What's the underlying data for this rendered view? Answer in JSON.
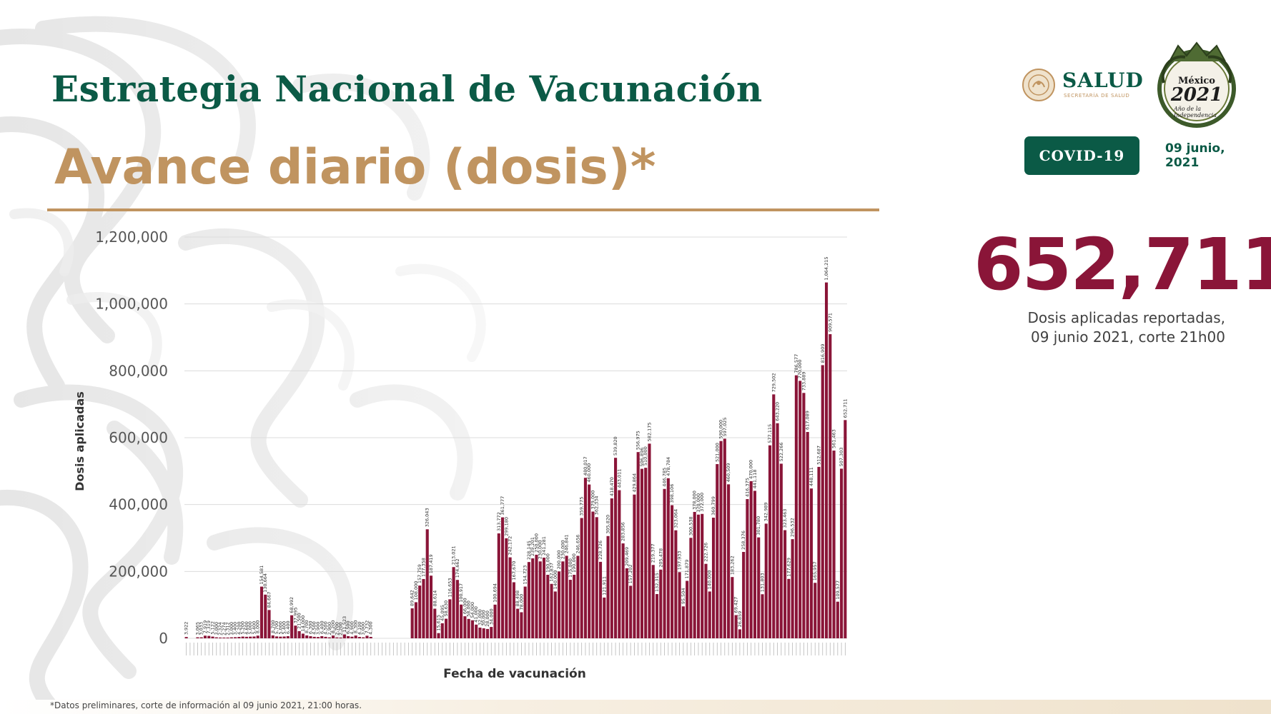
{
  "header": {
    "title": "Estrategia Nacional de Vacunación",
    "subtitle": "Avance diario (dosis)*"
  },
  "logos": {
    "salud_name": "SALUD",
    "salud_subname": "SECRETARÍA DE SALUD",
    "mexico_line1": "México",
    "mexico_line2": "2021",
    "mexico_line3": "Año de la Independencia"
  },
  "badge": {
    "label": "COVID-19"
  },
  "date": {
    "line1": "09 junio,",
    "line2": "2021"
  },
  "summary": {
    "value": "652,711",
    "caption_line1": "Dosis aplicadas reportadas,",
    "caption_line2": "09 junio 2021, corte 21h00"
  },
  "footnote": "*Datos preliminares, corte de información al 09 junio  2021, 21:00 horas.",
  "colors": {
    "bar": "#8a1538",
    "title_green": "#0b5a46",
    "subtitle_gold": "#c09460",
    "number": "#8a1538"
  },
  "chart_data": {
    "type": "bar",
    "title": "",
    "xlabel": "Fecha de vacunación",
    "ylabel": "Dosis aplicadas",
    "ylim": [
      0,
      1200000
    ],
    "yticks": [
      "0",
      "200,000",
      "400,000",
      "600,000",
      "800,000",
      "1,000,000",
      "1,200,000"
    ],
    "grid": true,
    "legend": "none",
    "values": [
      3922,
      0,
      0,
      3065,
      3033,
      7919,
      7319,
      5122,
      3000,
      2324,
      2274,
      2312,
      3000,
      3400,
      4200,
      5200,
      4600,
      5000,
      5400,
      8000,
      154581,
      130664,
      84667,
      8700,
      5700,
      5000,
      5400,
      6400,
      68992,
      37995,
      21500,
      14000,
      8700,
      6300,
      4500,
      3900,
      6400,
      4500,
      2900,
      8200,
      2700,
      2200,
      11523,
      6500,
      4900,
      8300,
      4100,
      3000,
      7732,
      4300,
      0,
      0,
      0,
      0,
      0,
      0,
      0,
      0,
      0,
      0,
      89642,
      108000,
      157759,
      177358,
      326043,
      187419,
      88614,
      15615,
      45095,
      58630,
      116653,
      213021,
      174662,
      100917,
      66000,
      58000,
      54000,
      41000,
      32000,
      30000,
      28000,
      34000,
      100694,
      313772,
      361777,
      299180,
      242172,
      167670,
      88498,
      78000,
      154723,
      228145,
      239201,
      250000,
      230000,
      241281,
      190000,
      162837,
      140000,
      200000,
      230000,
      246841,
      175000,
      190000,
      246656,
      359775,
      480017,
      460000,
      379000,
      362334,
      228726,
      121911,
      305820,
      418470,
      539820,
      443011,
      283856,
      209469,
      157202,
      429864,
      556975,
      506896,
      510000,
      582175,
      219377,
      132315,
      205478,
      446785,
      478784,
      398106,
      323064,
      197933,
      95504,
      171879,
      300538,
      378000,
      370000,
      372000,
      222726,
      140000,
      360799,
      521000,
      590000,
      597025,
      460509,
      183262,
      69427,
      26859,
      258376,
      416375,
      470000,
      441118,
      301780,
      131803,
      342989,
      577115,
      729502,
      643220,
      522266,
      323463,
      177629,
      296532,
      786577,
      770000,
      733889,
      617089,
      448111,
      165957,
      512687,
      816909,
      1064215,
      909571,
      561463,
      109577,
      507303,
      652711
    ]
  }
}
